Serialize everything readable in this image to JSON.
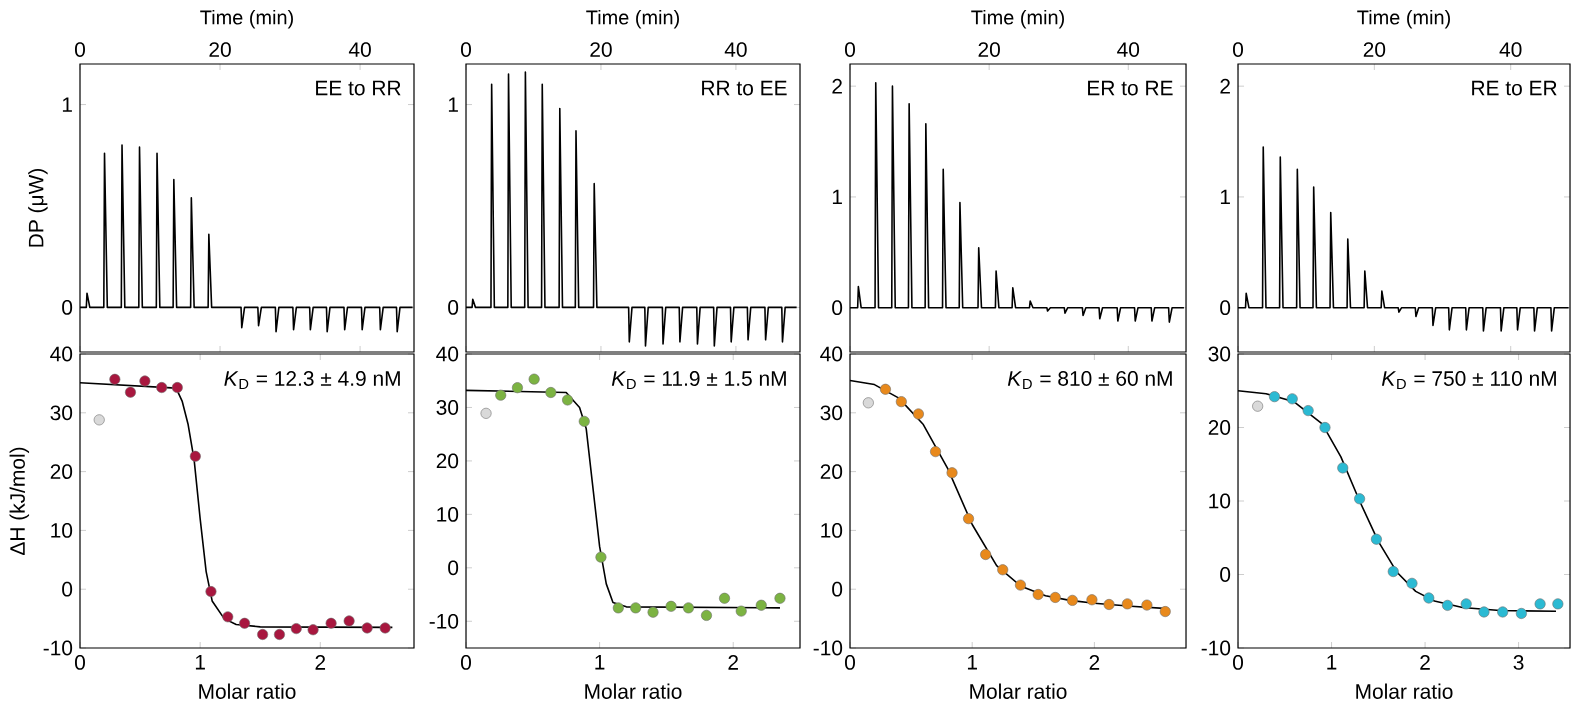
{
  "chart_data": [
    {
      "type": "line",
      "xlabel": "Time (min)",
      "ylabel": "DP (μW)",
      "xlim": [
        0,
        47.7
      ],
      "xticks": [
        0,
        20,
        40
      ],
      "ylim": [
        -0.22,
        1.2
      ],
      "yticks": [
        0,
        1
      ],
      "annotations": [
        "EE to RR"
      ],
      "series": [
        {
          "color": "#000000",
          "x": [
            0,
            0.9,
            1.0,
            1.4,
            3.4,
            3.5,
            3.9,
            5.9,
            6.0,
            6.4,
            8.4,
            8.5,
            8.9,
            10.9,
            11.0,
            11.4,
            13.3,
            13.4,
            13.8,
            15.8,
            15.9,
            16.3,
            18.3,
            18.4,
            18.8,
            23.0,
            23.1,
            23.5,
            25.4,
            25.5,
            25.9,
            27.9,
            28.0,
            28.4,
            30.4,
            30.5,
            30.9,
            32.8,
            32.9,
            33.3,
            35.2,
            35.3,
            35.7,
            37.7,
            37.8,
            38.2,
            40.2,
            40.3,
            40.7,
            42.8,
            42.9,
            43.3,
            45.2,
            45.3,
            45.7,
            47.5
          ],
          "values": [
            0,
            0,
            0.07,
            0,
            0,
            0.76,
            0,
            0,
            0.8,
            0,
            0,
            0.79,
            0,
            0,
            0.76,
            0,
            0,
            0.63,
            0,
            0,
            0.54,
            0,
            0,
            0.36,
            0,
            0,
            -0.1,
            0,
            0,
            -0.09,
            0,
            0,
            -0.12,
            0,
            0,
            -0.11,
            0,
            0,
            -0.11,
            0,
            0,
            -0.12,
            0,
            0,
            -0.11,
            0,
            0,
            -0.11,
            0,
            0,
            -0.11,
            0,
            0,
            -0.12,
            0,
            0
          ]
        }
      ]
    },
    {
      "type": "line",
      "xlabel": "Time (min)",
      "xlim": [
        0,
        49.5
      ],
      "xticks": [
        0,
        20,
        40
      ],
      "ylim": [
        -0.22,
        1.2
      ],
      "yticks": [
        0,
        1
      ],
      "annotations": [
        "RR to EE"
      ],
      "series": [
        {
          "color": "#000000",
          "x": [
            0,
            0.9,
            1.0,
            1.4,
            3.7,
            3.8,
            4.2,
            6.2,
            6.3,
            6.7,
            8.7,
            8.8,
            9.2,
            11.2,
            11.3,
            11.7,
            13.8,
            13.9,
            14.3,
            16.2,
            16.3,
            16.7,
            18.9,
            19.0,
            19.4,
            24.1,
            24.2,
            24.6,
            26.5,
            26.6,
            27.0,
            29.1,
            29.2,
            29.6,
            31.6,
            31.7,
            32.1,
            34.2,
            34.3,
            34.7,
            36.7,
            36.8,
            37.2,
            39.2,
            39.3,
            39.7,
            41.7,
            41.8,
            42.2,
            44.3,
            44.4,
            44.8,
            46.8,
            46.9,
            47.3,
            49.0
          ],
          "values": [
            0,
            0,
            0.04,
            0,
            0,
            1.1,
            0,
            0,
            1.15,
            0,
            0,
            1.16,
            0,
            0,
            1.1,
            0,
            0,
            0.98,
            0,
            0,
            0.87,
            0,
            0,
            0.61,
            0,
            0,
            -0.17,
            0,
            0,
            -0.19,
            0,
            0,
            -0.18,
            0,
            0,
            -0.17,
            0,
            0,
            -0.18,
            0,
            0,
            -0.19,
            0,
            0,
            -0.17,
            0,
            0,
            -0.16,
            0,
            0,
            -0.16,
            0,
            0,
            -0.17,
            0,
            0
          ]
        }
      ]
    },
    {
      "type": "line",
      "xlabel": "Time (min)",
      "xlim": [
        0,
        48.3
      ],
      "xticks": [
        0,
        20,
        40
      ],
      "ylim": [
        -0.4,
        2.2
      ],
      "yticks": [
        0,
        1,
        2
      ],
      "annotations": [
        "ER to RE"
      ],
      "series": [
        {
          "color": "#000000",
          "x": [
            0,
            1.1,
            1.2,
            1.6,
            3.6,
            3.7,
            4.1,
            6.0,
            6.1,
            6.5,
            8.4,
            8.5,
            8.9,
            10.8,
            10.9,
            11.3,
            13.3,
            13.4,
            13.8,
            15.7,
            15.8,
            16.2,
            18.4,
            18.5,
            18.9,
            20.9,
            21.0,
            21.4,
            23.3,
            23.4,
            23.8,
            25.8,
            25.9,
            26.3,
            28.3,
            28.4,
            28.8,
            30.8,
            30.9,
            31.3,
            33.4,
            33.5,
            33.9,
            35.8,
            35.9,
            36.3,
            38.4,
            38.5,
            38.9,
            40.9,
            41.0,
            41.4,
            43.3,
            43.4,
            43.8,
            45.8,
            45.9,
            46.3,
            48.0
          ],
          "values": [
            0,
            0,
            0.19,
            0,
            0,
            2.03,
            0,
            0,
            2.0,
            0,
            0,
            1.84,
            0,
            0,
            1.66,
            0,
            0,
            1.25,
            0,
            0,
            0.95,
            0,
            0,
            0.54,
            0,
            0,
            0.33,
            0,
            0,
            0.18,
            0,
            0,
            0.06,
            0,
            0,
            -0.03,
            0,
            0,
            -0.05,
            0,
            0,
            -0.07,
            0,
            0,
            -0.1,
            0,
            0,
            -0.12,
            0,
            0,
            -0.12,
            0,
            0,
            -0.12,
            0,
            0,
            -0.13,
            0,
            0
          ]
        }
      ]
    },
    {
      "type": "line",
      "xlabel": "Time (min)",
      "xlim": [
        0,
        48.7
      ],
      "xticks": [
        0,
        20,
        40
      ],
      "ylim": [
        -0.4,
        2.2
      ],
      "yticks": [
        0,
        1,
        2
      ],
      "annotations": [
        "RE to ER"
      ],
      "series": [
        {
          "color": "#000000",
          "x": [
            0,
            1.1,
            1.2,
            1.6,
            3.6,
            3.7,
            4.1,
            6.1,
            6.2,
            6.6,
            8.6,
            8.7,
            9.1,
            11.0,
            11.1,
            11.5,
            13.5,
            13.6,
            14.0,
            16.0,
            16.1,
            16.5,
            18.5,
            18.6,
            19.0,
            21.0,
            21.1,
            21.5,
            23.5,
            23.6,
            24.0,
            26.0,
            26.1,
            26.5,
            28.5,
            28.6,
            29.0,
            30.9,
            31.0,
            31.4,
            33.4,
            33.5,
            33.9,
            35.9,
            36.0,
            36.4,
            38.5,
            38.6,
            39.0,
            40.9,
            41.0,
            41.4,
            43.4,
            43.5,
            43.9,
            45.9,
            46.0,
            46.4,
            48.5
          ],
          "values": [
            0,
            0,
            0.13,
            0,
            0,
            1.45,
            0,
            0,
            1.36,
            0,
            0,
            1.25,
            0,
            0,
            1.09,
            0,
            0,
            0.86,
            0,
            0,
            0.62,
            0,
            0,
            0.33,
            0,
            0,
            0.15,
            0,
            0,
            -0.04,
            0,
            0,
            -0.08,
            0,
            0,
            -0.16,
            0,
            0,
            -0.2,
            0,
            0,
            -0.2,
            0,
            0,
            -0.21,
            0,
            0,
            -0.21,
            0,
            0,
            -0.2,
            0,
            0,
            -0.21,
            0,
            0,
            -0.21,
            0,
            0
          ]
        }
      ]
    },
    {
      "type": "scatter",
      "marker": "circle",
      "xlabel": "Molar ratio",
      "ylabel": "ΔH (kJ/mol)",
      "xlim": [
        0,
        2.78
      ],
      "xticks": [
        0,
        1,
        2
      ],
      "ylim": [
        -10,
        40
      ],
      "yticks": [
        -10,
        0,
        10,
        20,
        30,
        40
      ],
      "annotations": [
        "*K*$_{D}$ = 12.3 ± 4.9 nM"
      ],
      "series": [
        {
          "color": "#d9d9d9",
          "x": [
            0.16
          ],
          "values": [
            28.8
          ]
        },
        {
          "color": "#a8173f",
          "x": [
            0.29,
            0.42,
            0.54,
            0.68,
            0.81,
            0.96,
            1.09,
            1.23,
            1.37,
            1.52,
            1.66,
            1.8,
            1.94,
            2.09,
            2.24,
            2.39,
            2.54
          ],
          "values": [
            35.7,
            33.5,
            35.4,
            34.3,
            34.3,
            22.6,
            -0.4,
            -4.7,
            -5.8,
            -7.7,
            -7.7,
            -6.7,
            -6.9,
            -5.8,
            -5.4,
            -6.6,
            -6.6
          ]
        },
        {
          "type": "line",
          "marker": "none",
          "color": "#000000",
          "x": [
            0,
            0.8,
            0.85,
            0.9,
            0.95,
            1.0,
            1.05,
            1.1,
            1.2,
            1.3,
            1.5,
            2.6
          ],
          "values": [
            35.1,
            34.2,
            32,
            28,
            22,
            12,
            3,
            -2,
            -5,
            -6,
            -6.4,
            -6.5
          ]
        }
      ]
    },
    {
      "type": "scatter",
      "marker": "circle",
      "xlabel": "Molar ratio",
      "xlim": [
        0,
        2.5
      ],
      "xticks": [
        0,
        1,
        2
      ],
      "ylim": [
        -15,
        40
      ],
      "yticks": [
        -10,
        0,
        10,
        20,
        30,
        40
      ],
      "annotations": [
        "*K*$_{D}$ = 11.9 ± 1.5 nM"
      ],
      "series": [
        {
          "color": "#d9d9d9",
          "x": [
            0.15
          ],
          "values": [
            28.9
          ]
        },
        {
          "color": "#7cb342",
          "x": [
            0.26,
            0.385,
            0.51,
            0.635,
            0.76,
            0.885,
            1.01,
            1.14,
            1.27,
            1.4,
            1.535,
            1.665,
            1.8,
            1.935,
            2.06,
            2.21,
            2.35
          ],
          "values": [
            32.3,
            33.7,
            35.3,
            32.8,
            31.4,
            27.4,
            2.0,
            -7.5,
            -7.5,
            -8.3,
            -7.2,
            -7.5,
            -8.9,
            -5.7,
            -8.1,
            -7.0,
            -5.7
          ]
        },
        {
          "type": "line",
          "marker": "none",
          "color": "#000000",
          "x": [
            0,
            0.75,
            0.85,
            0.9,
            0.95,
            1.0,
            1.05,
            1.1,
            1.2,
            2.35
          ],
          "values": [
            33.2,
            32.8,
            30,
            26,
            15,
            4,
            -3,
            -6.5,
            -7.3,
            -7.5
          ]
        }
      ]
    },
    {
      "type": "scatter",
      "marker": "circle",
      "xlabel": "Molar ratio",
      "xlim": [
        0,
        2.75
      ],
      "xticks": [
        0,
        1,
        2
      ],
      "ylim": [
        -10,
        40
      ],
      "yticks": [
        -10,
        0,
        10,
        20,
        30,
        40
      ],
      "annotations": [
        "*K*$_{D}$ = 810 ± 60 nM"
      ],
      "series": [
        {
          "color": "#d9d9d9",
          "x": [
            0.15
          ],
          "values": [
            31.7
          ]
        },
        {
          "color": "#e8891c",
          "x": [
            0.29,
            0.42,
            0.56,
            0.7,
            0.835,
            0.97,
            1.11,
            1.25,
            1.395,
            1.54,
            1.68,
            1.82,
            1.98,
            2.12,
            2.27,
            2.43,
            2.58
          ],
          "values": [
            34.0,
            31.9,
            29.8,
            23.4,
            19.8,
            12.0,
            5.9,
            3.3,
            0.7,
            -0.9,
            -1.4,
            -1.9,
            -1.8,
            -2.6,
            -2.5,
            -2.7,
            -3.8
          ]
        },
        {
          "type": "line",
          "marker": "none",
          "color": "#000000",
          "x": [
            0,
            0.2,
            0.4,
            0.6,
            0.8,
            1.0,
            1.2,
            1.4,
            1.6,
            1.8,
            2.0,
            2.3,
            2.6
          ],
          "values": [
            35.5,
            34.8,
            32.5,
            28,
            20.5,
            11,
            4,
            0.5,
            -1.1,
            -1.9,
            -2.4,
            -2.9,
            -3.3
          ]
        }
      ]
    },
    {
      "type": "scatter",
      "marker": "circle",
      "xlabel": "Molar ratio",
      "xlim": [
        0,
        3.55
      ],
      "xticks": [
        0,
        1,
        2,
        3
      ],
      "ylim": [
        -10,
        30
      ],
      "yticks": [
        -10,
        0,
        10,
        20,
        30
      ],
      "annotations": [
        "*K*$_{D}$ = 750 ± 110 nM"
      ],
      "series": [
        {
          "color": "#d9d9d9",
          "x": [
            0.21
          ],
          "values": [
            22.9
          ]
        },
        {
          "color": "#2bbad3",
          "x": [
            0.39,
            0.58,
            0.75,
            0.93,
            1.12,
            1.3,
            1.48,
            1.66,
            1.86,
            2.04,
            2.24,
            2.44,
            2.63,
            2.83,
            3.03,
            3.23,
            3.42
          ],
          "values": [
            24.2,
            23.9,
            22.3,
            20.0,
            14.5,
            10.3,
            4.8,
            0.4,
            -1.2,
            -3.2,
            -4.2,
            -4.0,
            -5.1,
            -5.1,
            -5.3,
            -4.0,
            -4.0
          ]
        },
        {
          "type": "line",
          "marker": "none",
          "color": "#000000",
          "x": [
            0,
            0.3,
            0.6,
            0.9,
            1.1,
            1.3,
            1.5,
            1.7,
            1.9,
            2.1,
            2.4,
            2.8,
            3.4
          ],
          "values": [
            25.0,
            24.6,
            23.5,
            20.5,
            16,
            10,
            4.5,
            0.3,
            -2.3,
            -3.6,
            -4.5,
            -4.9,
            -5.0
          ]
        }
      ]
    }
  ]
}
